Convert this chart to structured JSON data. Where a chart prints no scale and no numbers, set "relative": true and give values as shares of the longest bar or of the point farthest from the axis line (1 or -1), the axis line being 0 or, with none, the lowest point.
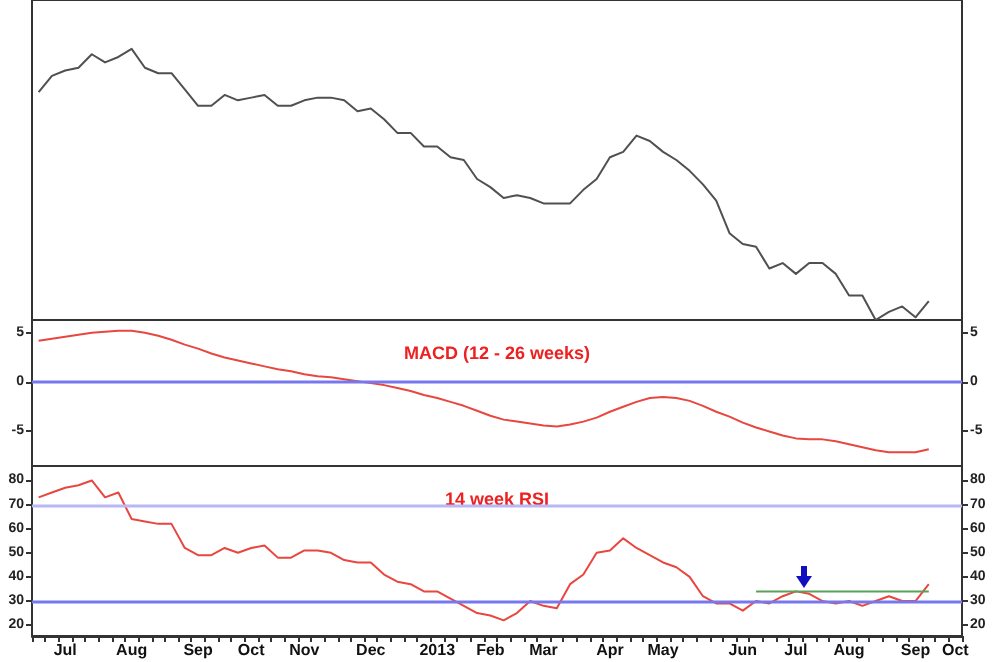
{
  "chart_data": [
    {
      "type": "line",
      "relative": true,
      "tick_labels": false,
      "categories": [
        null,
        null,
        null,
        null,
        null,
        null,
        null,
        null,
        null,
        null,
        null,
        null,
        null,
        null,
        null,
        null,
        null,
        null,
        null,
        null,
        null,
        null,
        null,
        null,
        null,
        null,
        null,
        null,
        null,
        null,
        null,
        null,
        null,
        null,
        null,
        null,
        null,
        null,
        null,
        null,
        null,
        null,
        null,
        null,
        null,
        null,
        null,
        null,
        null,
        null,
        null,
        null,
        null,
        null,
        null,
        null,
        null,
        null,
        null,
        null,
        null,
        null,
        null,
        null,
        null,
        null,
        null,
        null,
        null,
        null
      ],
      "series": [
        {
          "color": "#505050",
          "values": [
            0.84,
            0.9,
            0.92,
            0.93,
            0.98,
            0.95,
            0.97,
            1,
            0.93,
            0.91,
            0.91,
            0.85,
            0.79,
            0.79,
            0.83,
            0.81,
            0.82,
            0.83,
            0.79,
            0.79,
            0.81,
            0.82,
            0.82,
            0.81,
            0.77,
            0.78,
            0.74,
            0.69,
            0.69,
            0.64,
            0.64,
            0.6,
            0.59,
            0.52,
            0.49,
            0.45,
            0.46,
            0.45,
            0.43,
            0.43,
            0.43,
            0.48,
            0.52,
            0.6,
            0.62,
            0.68,
            0.66,
            0.62,
            0.59,
            0.55,
            0.5,
            0.44,
            0.32,
            0.28,
            0.27,
            0.19,
            0.21,
            0.17,
            0.21,
            0.21,
            0.17,
            0.09,
            0.09,
            0,
            0.03,
            0.05,
            0.01,
            0.07,
            null,
            null
          ]
        }
      ]
    },
    {
      "type": "line",
      "tick_labels": "y",
      "annotations": [
        "MACD (12 - 26 weeks)"
      ],
      "categories": [
        null,
        null,
        null,
        null,
        null,
        null,
        null,
        null,
        null,
        null,
        null,
        null,
        null,
        null,
        null,
        null,
        null,
        null,
        null,
        null,
        null,
        null,
        null,
        null,
        null,
        null,
        null,
        null,
        null,
        null,
        null,
        null,
        null,
        null,
        null,
        null,
        null,
        null,
        null,
        null,
        null,
        null,
        null,
        null,
        null,
        null,
        null,
        null,
        null,
        null,
        null,
        null,
        null,
        null,
        null,
        null,
        null,
        null,
        null,
        null,
        null,
        null,
        null,
        null,
        null,
        null,
        null,
        null,
        null,
        null
      ],
      "ylim": [
        -8.5,
        6.3
      ],
      "yticks": [
        -5,
        0,
        5
      ],
      "y2lim": [
        -8.5,
        6.3
      ],
      "y2ticks": [
        -5,
        0,
        5
      ],
      "ref_lines": [
        {
          "axis": "y",
          "value": 0,
          "color": "#7777ee"
        }
      ],
      "series": [
        {
          "color": "#e8473f",
          "values": [
            4.2,
            4.4,
            4.6,
            4.8,
            5.0,
            5.1,
            5.2,
            5.2,
            5.0,
            4.7,
            4.3,
            3.8,
            3.4,
            2.9,
            2.5,
            2.2,
            1.9,
            1.6,
            1.3,
            1.1,
            0.8,
            0.6,
            0.5,
            0.3,
            0.1,
            -0.1,
            -0.3,
            -0.6,
            -0.9,
            -1.3,
            -1.6,
            -2.0,
            -2.4,
            -2.9,
            -3.4,
            -3.8,
            -4.0,
            -4.2,
            -4.4,
            -4.5,
            -4.3,
            -4.0,
            -3.6,
            -3.0,
            -2.5,
            -2.0,
            -1.6,
            -1.5,
            -1.6,
            -1.9,
            -2.4,
            -3.0,
            -3.5,
            -4.1,
            -4.6,
            -5.0,
            -5.4,
            -5.7,
            -5.8,
            -5.8,
            -6.0,
            -6.3,
            -6.6,
            -6.9,
            -7.1,
            -7.1,
            -7.1,
            -6.8,
            null,
            null
          ]
        }
      ]
    },
    {
      "type": "line",
      "annotations": [
        "14 week RSI"
      ],
      "categories": [
        null,
        null,
        "Jul",
        null,
        null,
        null,
        null,
        "Aug",
        null,
        null,
        null,
        null,
        "Sep",
        null,
        null,
        null,
        "Oct",
        null,
        null,
        null,
        "Nov",
        null,
        null,
        null,
        null,
        "Dec",
        null,
        null,
        null,
        null,
        "2013",
        null,
        null,
        null,
        "Feb",
        null,
        null,
        null,
        "Mar",
        null,
        null,
        null,
        null,
        "Apr",
        null,
        null,
        null,
        "May",
        null,
        null,
        null,
        null,
        null,
        "Jun",
        null,
        null,
        null,
        "Jul",
        null,
        null,
        null,
        "Aug",
        null,
        null,
        null,
        null,
        "Sep",
        null,
        null,
        "Oct"
      ],
      "ylim": [
        15.5,
        86
      ],
      "yticks": [
        20,
        30,
        40,
        50,
        60,
        70,
        80
      ],
      "y2lim": [
        15.5,
        86
      ],
      "y2ticks": [
        20,
        30,
        40,
        50,
        60,
        70,
        80
      ],
      "ref_lines": [
        {
          "axis": "y",
          "value": 70,
          "color": "#b8b8f4"
        },
        {
          "axis": "y",
          "value": 30,
          "color": "#7777ee"
        }
      ],
      "series": [
        {
          "color": "#e8473f",
          "values": [
            73,
            75,
            77,
            78,
            80,
            73,
            75,
            64,
            63,
            62,
            62,
            52,
            49,
            49,
            52,
            50,
            52,
            53,
            48,
            48,
            51,
            51,
            50,
            47,
            46,
            46,
            41,
            38,
            37,
            34,
            34,
            31,
            28,
            25,
            24,
            22,
            25,
            30,
            28,
            27,
            37,
            41,
            50,
            51,
            56,
            52,
            49,
            46,
            44,
            40,
            32,
            29,
            29,
            26,
            30,
            29,
            32,
            34,
            33,
            30,
            29,
            30,
            28,
            30,
            32,
            30,
            30,
            37,
            null,
            null
          ]
        },
        {
          "color": "#5aa05a",
          "values": [
            null,
            null,
            null,
            null,
            null,
            null,
            null,
            null,
            null,
            null,
            null,
            null,
            null,
            null,
            null,
            null,
            null,
            null,
            null,
            null,
            null,
            null,
            null,
            null,
            null,
            null,
            null,
            null,
            null,
            null,
            null,
            null,
            null,
            null,
            null,
            null,
            null,
            null,
            null,
            null,
            null,
            null,
            null,
            null,
            null,
            null,
            null,
            null,
            null,
            null,
            null,
            null,
            null,
            null,
            34,
            34,
            34,
            34,
            34,
            34,
            34,
            34,
            34,
            34,
            34,
            34,
            34,
            34,
            null,
            null
          ]
        }
      ]
    }
  ]
}
